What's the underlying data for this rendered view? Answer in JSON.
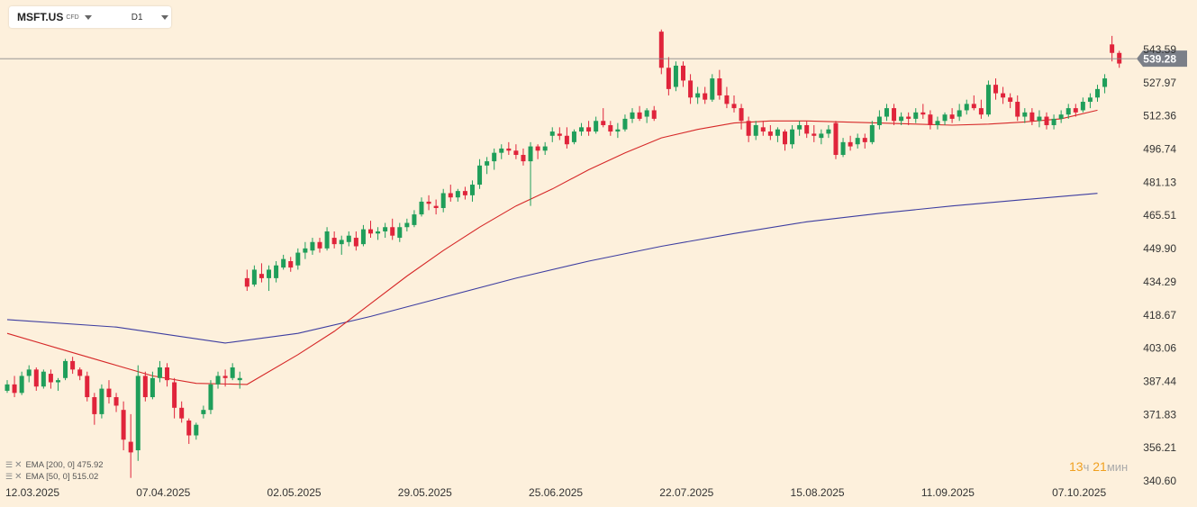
{
  "symbol": "MSFT.US",
  "instrument_type": "CFD",
  "timeframe": "D1",
  "current_price_label": "539.28",
  "countdown": {
    "hours": "13",
    "hours_unit": "ч",
    "minutes": "21",
    "minutes_unit": "мин"
  },
  "indicators": [
    {
      "text": "EMA [200, 0] 475.92",
      "color": "#3d3da0"
    },
    {
      "text": "EMA [50, 0] 515.02",
      "color": "#d62828"
    }
  ],
  "colors": {
    "background": "#fdf0dc",
    "bull": "#1f9e5a",
    "bear": "#e0243b",
    "ema200": "#3d3da0",
    "ema50": "#d62828",
    "price_line": "#888888",
    "price_tag": "#7b7f88"
  },
  "chart_data": {
    "type": "candlestick",
    "y_ticks": [
      543.59,
      527.97,
      512.36,
      496.74,
      481.13,
      465.51,
      449.9,
      434.29,
      418.67,
      403.06,
      387.44,
      371.83,
      356.21,
      340.6
    ],
    "x_ticks": [
      "12.03.2025",
      "07.04.2025",
      "02.05.2025",
      "29.05.2025",
      "25.06.2025",
      "22.07.2025",
      "15.08.2025",
      "11.09.2025",
      "07.10.2025"
    ],
    "x_tick_index": [
      0,
      18,
      36,
      54,
      72,
      90,
      108,
      126,
      144
    ],
    "last_price": 539.28,
    "candles": [
      [
        383,
        388,
        382,
        386
      ],
      [
        386,
        390,
        380,
        382
      ],
      [
        382,
        392,
        381,
        390
      ],
      [
        390,
        395,
        387,
        393
      ],
      [
        393,
        394,
        383,
        385
      ],
      [
        385,
        393,
        384,
        392
      ],
      [
        391,
        393,
        384,
        387
      ],
      [
        387,
        389,
        383,
        388
      ],
      [
        389,
        398,
        388,
        397
      ],
      [
        397,
        399,
        391,
        393
      ],
      [
        393,
        394,
        388,
        390
      ],
      [
        390,
        392,
        378,
        380
      ],
      [
        380,
        382,
        367,
        372
      ],
      [
        372,
        386,
        370,
        384
      ],
      [
        384,
        388,
        377,
        380
      ],
      [
        380,
        382,
        373,
        376
      ],
      [
        374,
        378,
        355,
        360
      ],
      [
        359,
        372,
        342,
        354
      ],
      [
        355,
        395,
        350,
        390
      ],
      [
        390,
        392,
        378,
        380
      ],
      [
        380,
        392,
        379,
        389
      ],
      [
        389,
        397,
        387,
        394
      ],
      [
        394,
        396,
        385,
        388
      ],
      [
        387,
        389,
        370,
        375
      ],
      [
        375,
        378,
        368,
        370
      ],
      [
        369,
        370,
        358,
        362
      ],
      [
        362,
        368,
        360,
        367
      ],
      [
        372,
        376,
        370,
        374
      ],
      [
        374,
        388,
        372,
        386
      ],
      [
        386,
        392,
        384,
        390
      ],
      [
        390,
        393,
        385,
        389
      ],
      [
        389,
        396,
        388,
        394
      ],
      [
        388,
        392,
        384,
        389
      ],
      [
        436,
        440,
        430,
        432
      ],
      [
        433,
        442,
        432,
        440
      ],
      [
        438,
        443,
        434,
        436
      ],
      [
        436,
        442,
        430,
        440
      ],
      [
        436,
        444,
        434,
        442
      ],
      [
        441,
        447,
        440,
        445
      ],
      [
        444,
        446,
        439,
        441
      ],
      [
        442,
        450,
        440,
        448
      ],
      [
        448,
        453,
        445,
        450
      ],
      [
        449,
        455,
        447,
        453
      ],
      [
        453,
        455,
        448,
        450
      ],
      [
        450,
        460,
        449,
        458
      ],
      [
        455,
        458,
        450,
        452
      ],
      [
        452,
        456,
        447,
        454
      ],
      [
        453,
        458,
        451,
        456
      ],
      [
        455,
        458,
        449,
        451
      ],
      [
        452,
        461,
        451,
        459
      ],
      [
        459,
        463,
        455,
        457
      ],
      [
        457,
        460,
        454,
        458
      ],
      [
        458,
        462,
        455,
        460
      ],
      [
        460,
        464,
        454,
        456
      ],
      [
        455,
        462,
        453,
        460
      ],
      [
        460,
        464,
        458,
        462
      ],
      [
        461,
        468,
        460,
        466
      ],
      [
        466,
        474,
        465,
        472
      ],
      [
        472,
        475,
        468,
        471
      ],
      [
        470,
        473,
        466,
        469
      ],
      [
        469,
        478,
        467,
        476
      ],
      [
        476,
        480,
        472,
        474
      ],
      [
        474,
        478,
        472,
        477
      ],
      [
        477,
        479,
        473,
        475
      ],
      [
        475,
        482,
        472,
        480
      ],
      [
        480,
        492,
        478,
        489
      ],
      [
        489,
        493,
        485,
        491
      ],
      [
        491,
        497,
        487,
        495
      ],
      [
        495,
        499,
        492,
        497
      ],
      [
        497,
        500,
        494,
        496
      ],
      [
        496,
        499,
        492,
        494
      ],
      [
        494,
        497,
        489,
        491
      ],
      [
        491,
        500,
        470,
        498
      ],
      [
        498,
        499,
        492,
        496
      ],
      [
        496,
        500,
        494,
        498
      ],
      [
        503,
        507,
        500,
        505
      ],
      [
        504,
        507,
        501,
        503
      ],
      [
        503,
        507,
        497,
        499
      ],
      [
        500,
        506,
        499,
        505
      ],
      [
        505,
        509,
        503,
        507
      ],
      [
        507,
        510,
        503,
        505
      ],
      [
        505,
        512,
        504,
        510
      ],
      [
        510,
        516,
        507,
        508
      ],
      [
        508,
        510,
        503,
        505
      ],
      [
        505,
        509,
        502,
        506
      ],
      [
        506,
        513,
        505,
        511
      ],
      [
        511,
        516,
        509,
        514
      ],
      [
        514,
        517,
        510,
        511
      ],
      [
        512,
        516,
        509,
        515
      ],
      [
        515,
        517,
        510,
        511
      ],
      [
        552,
        553,
        532,
        535
      ],
      [
        535,
        540,
        522,
        525
      ],
      [
        526,
        538,
        524,
        536
      ],
      [
        536,
        538,
        526,
        529
      ],
      [
        529,
        532,
        518,
        521
      ],
      [
        521,
        526,
        518,
        523
      ],
      [
        523,
        526,
        518,
        520
      ],
      [
        520,
        532,
        519,
        530
      ],
      [
        530,
        534,
        520,
        522
      ],
      [
        522,
        526,
        516,
        518
      ],
      [
        518,
        522,
        514,
        516
      ],
      [
        516,
        518,
        506,
        510
      ],
      [
        510,
        512,
        500,
        503
      ],
      [
        503,
        510,
        501,
        508
      ],
      [
        507,
        510,
        503,
        505
      ],
      [
        505,
        508,
        501,
        503
      ],
      [
        503,
        507,
        500,
        506
      ],
      [
        505,
        506,
        496,
        499
      ],
      [
        499,
        508,
        497,
        506
      ],
      [
        506,
        510,
        503,
        508
      ],
      [
        508,
        510,
        502,
        504
      ],
      [
        504,
        508,
        500,
        503
      ],
      [
        502,
        506,
        499,
        504
      ],
      [
        504,
        508,
        502,
        506
      ],
      [
        509,
        510,
        492,
        494
      ],
      [
        494,
        502,
        493,
        500
      ],
      [
        500,
        503,
        496,
        498
      ],
      [
        499,
        504,
        497,
        502
      ],
      [
        502,
        504,
        497,
        500
      ],
      [
        500,
        510,
        499,
        508
      ],
      [
        508,
        515,
        506,
        512
      ],
      [
        512,
        518,
        510,
        516
      ],
      [
        516,
        518,
        508,
        510
      ],
      [
        510,
        514,
        508,
        512
      ],
      [
        512,
        514,
        508,
        511
      ],
      [
        511,
        516,
        509,
        514
      ],
      [
        514,
        518,
        511,
        513
      ],
      [
        513,
        515,
        506,
        508
      ],
      [
        508,
        512,
        506,
        510
      ],
      [
        510,
        514,
        508,
        513
      ],
      [
        513,
        516,
        509,
        511
      ],
      [
        512,
        518,
        510,
        515
      ],
      [
        515,
        520,
        513,
        518
      ],
      [
        518,
        522,
        515,
        516
      ],
      [
        516,
        520,
        511,
        513
      ],
      [
        513,
        529,
        512,
        527
      ],
      [
        527,
        530,
        520,
        523
      ],
      [
        523,
        526,
        518,
        521
      ],
      [
        521,
        523,
        516,
        519
      ],
      [
        519,
        522,
        510,
        512
      ],
      [
        512,
        516,
        509,
        514
      ],
      [
        514,
        516,
        508,
        510
      ],
      [
        510,
        515,
        507,
        512
      ],
      [
        512,
        514,
        506,
        508
      ],
      [
        508,
        513,
        506,
        511
      ],
      [
        511,
        515,
        509,
        513
      ],
      [
        513,
        518,
        511,
        516
      ],
      [
        516,
        518,
        512,
        514
      ],
      [
        515,
        521,
        514,
        519
      ],
      [
        519,
        523,
        516,
        521
      ],
      [
        521,
        527,
        519,
        525
      ],
      [
        526,
        532,
        523,
        530
      ],
      [
        546,
        550,
        538,
        542
      ],
      [
        542,
        543,
        535,
        537
      ]
    ],
    "ema200": [
      [
        0,
        416.5
      ],
      [
        15,
        413
      ],
      [
        30,
        405.5
      ],
      [
        40,
        410
      ],
      [
        50,
        418
      ],
      [
        60,
        427
      ],
      [
        70,
        436
      ],
      [
        80,
        444
      ],
      [
        90,
        451
      ],
      [
        100,
        457
      ],
      [
        110,
        462.5
      ],
      [
        120,
        466.5
      ],
      [
        130,
        470
      ],
      [
        140,
        473
      ],
      [
        150,
        475.92
      ]
    ],
    "ema50": [
      [
        0,
        410
      ],
      [
        7,
        403
      ],
      [
        14,
        396
      ],
      [
        20,
        390
      ],
      [
        26,
        386.5
      ],
      [
        33,
        386
      ],
      [
        40,
        400
      ],
      [
        45,
        411
      ],
      [
        50,
        424
      ],
      [
        55,
        437
      ],
      [
        60,
        449
      ],
      [
        65,
        460
      ],
      [
        70,
        470
      ],
      [
        75,
        478
      ],
      [
        80,
        487
      ],
      [
        85,
        495
      ],
      [
        90,
        502
      ],
      [
        95,
        506
      ],
      [
        100,
        509
      ],
      [
        105,
        510
      ],
      [
        110,
        510
      ],
      [
        115,
        509.5
      ],
      [
        120,
        509
      ],
      [
        125,
        508.5
      ],
      [
        130,
        508
      ],
      [
        135,
        508.5
      ],
      [
        140,
        509.5
      ],
      [
        145,
        511
      ],
      [
        150,
        515.02
      ]
    ]
  }
}
